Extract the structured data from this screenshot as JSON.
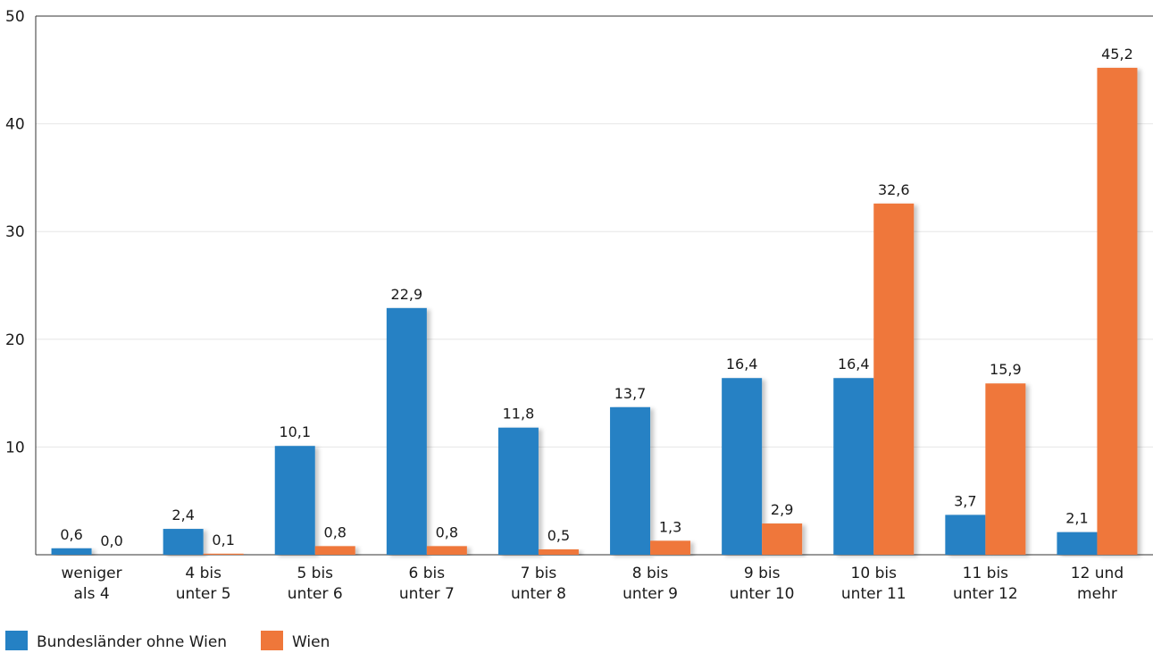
{
  "chart_data": {
    "type": "bar",
    "categories": [
      [
        "weniger",
        "als 4"
      ],
      [
        "4 bis",
        "unter 5"
      ],
      [
        "5 bis",
        "unter 6"
      ],
      [
        "6 bis",
        "unter 7"
      ],
      [
        "7 bis",
        "unter 8"
      ],
      [
        "8 bis",
        "unter 9"
      ],
      [
        "9 bis",
        "unter 10"
      ],
      [
        "10 bis",
        "unter 11"
      ],
      [
        "11 bis",
        "unter 12"
      ],
      [
        "12 und",
        "mehr"
      ]
    ],
    "series": [
      {
        "name": "Bundesländer ohne Wien",
        "color": "#2581c4",
        "values": [
          0.6,
          2.4,
          10.1,
          22.9,
          11.8,
          13.7,
          16.4,
          16.4,
          3.7,
          2.1
        ],
        "labels": [
          "0,6",
          "2,4",
          "10,1",
          "22,9",
          "11,8",
          "13,7",
          "16,4",
          "16,4",
          "3,7",
          "2,1"
        ]
      },
      {
        "name": "Wien",
        "color": "#ef773a",
        "values": [
          0.0,
          0.1,
          0.8,
          0.8,
          0.5,
          1.3,
          2.9,
          32.6,
          15.9,
          45.2
        ],
        "labels": [
          "0,0",
          "0,1",
          "0,8",
          "0,8",
          "0,5",
          "1,3",
          "2,9",
          "32,6",
          "15,9",
          "45,2"
        ]
      }
    ],
    "yticks": [
      10,
      20,
      30,
      40,
      50
    ],
    "ylim": [
      0,
      50
    ],
    "grid": true,
    "legend_position": "bottom-left",
    "title": "",
    "xlabel": "",
    "ylabel": ""
  }
}
